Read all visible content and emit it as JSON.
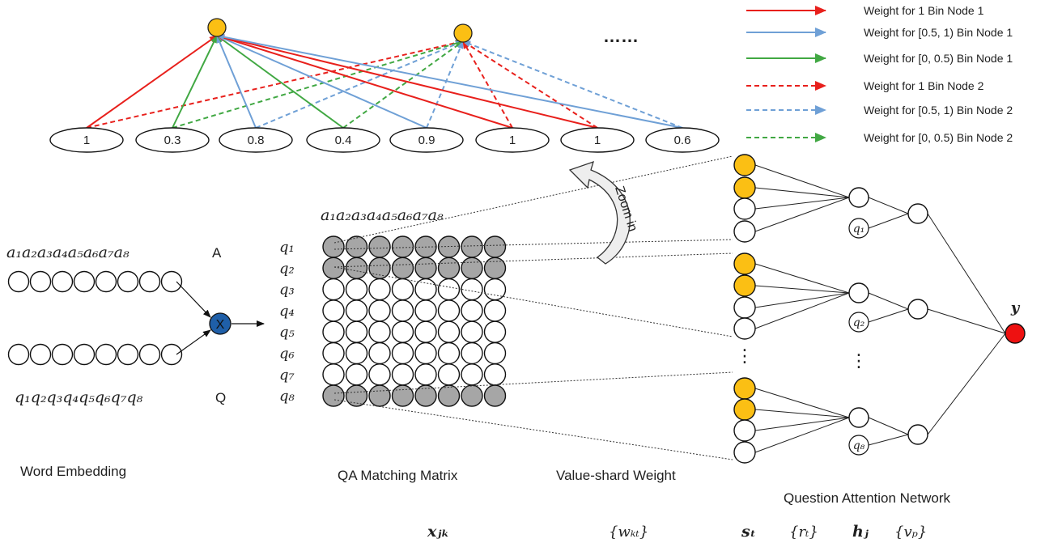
{
  "colors": {
    "red": "#e8201c",
    "blue": "#6fa0d6",
    "green": "#41a843",
    "orange": "#fbbf14",
    "gray": "#a6a6a6",
    "darkblue": "#1f5fa8",
    "output_red": "#ee1111"
  },
  "legend": [
    {
      "label": "Weight for 1 Bin Node 1",
      "color": "red",
      "style": "solid"
    },
    {
      "label": "Weight for [0.5, 1) Bin Node 1",
      "color": "blue",
      "style": "solid"
    },
    {
      "label": "Weight for [0, 0.5)  Bin Node 1",
      "color": "green",
      "style": "solid"
    },
    {
      "label": "Weight for 1  Bin Node 2",
      "color": "red",
      "style": "dashed"
    },
    {
      "label": "Weight for [0.5, 1) Bin Node 2",
      "color": "blue",
      "style": "dashed"
    },
    {
      "label": "Weight for [0, 0.5) Bin Node 2",
      "color": "green",
      "style": "dashed"
    }
  ],
  "bins": [
    "1",
    "0.3",
    "0.8",
    "0.4",
    "0.9",
    "1",
    "1",
    "0.6"
  ],
  "ellipsis_top": "……",
  "answer_seq": "a₁a₂a₃a₄a₅a₆a₇a₈",
  "question_seq": "q₁q₂q₃q₄q₅q₆q₇q₈",
  "label_A": "A",
  "label_Q": "Q",
  "multiply_symbol": "X",
  "matrix_rows": [
    "q₁",
    "q₂",
    "q₃",
    "q₄",
    "q₅",
    "q₆",
    "q₇",
    "q₈"
  ],
  "zoom_label": "Zoom in",
  "attention_q_labels": [
    "q₁",
    "q₂",
    "q₈"
  ],
  "vdots": "⋮",
  "output_label": "y",
  "captions": {
    "word_embedding": "Word Embedding",
    "qa_matrix": "QA Matching Matrix",
    "value_shard": "Value-shard Weight",
    "question_attention": "Question Attention Network"
  },
  "symbols": {
    "x_jk": "xⱼₖ",
    "w_kt": "{wₖₜ}",
    "s_t": "sₜ",
    "r_t": "{rₜ}",
    "h_j": "hⱼ",
    "v_p": "{vₚ}"
  }
}
